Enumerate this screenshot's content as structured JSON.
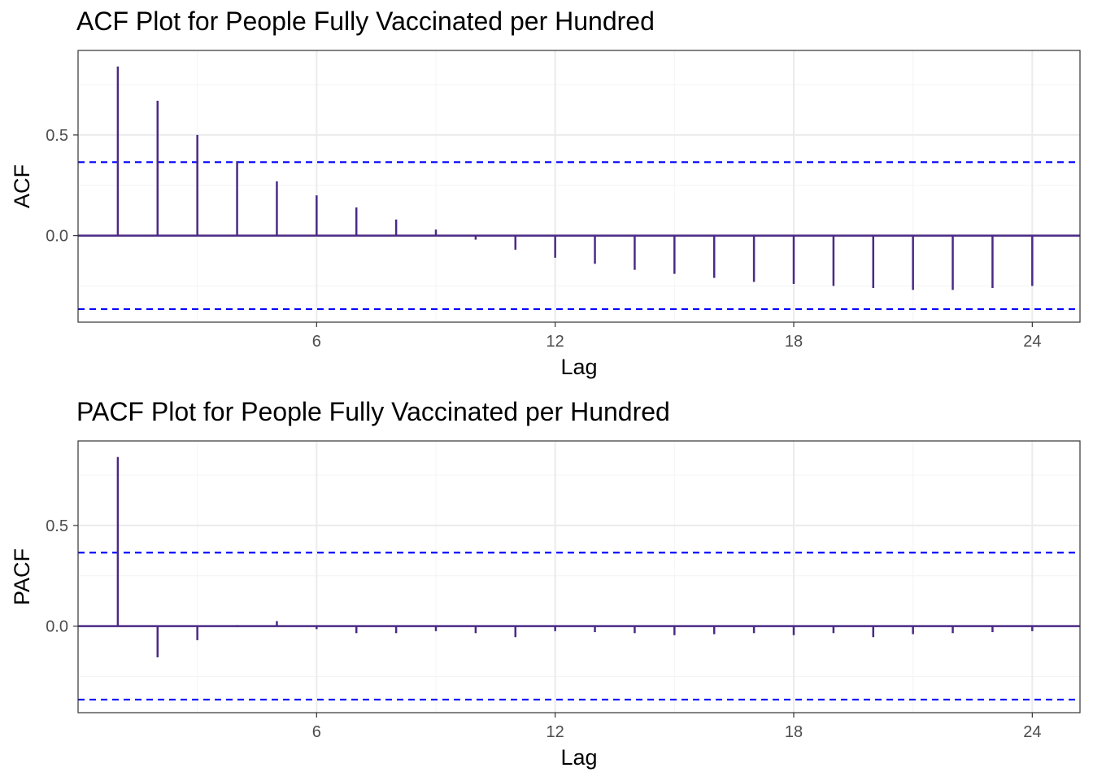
{
  "chart_data": [
    {
      "type": "bar",
      "title": "ACF Plot for People Fully Vaccinated per Hundred",
      "xlabel": "Lag",
      "ylabel": "ACF",
      "x": [
        1,
        2,
        3,
        4,
        5,
        6,
        7,
        8,
        9,
        10,
        11,
        12,
        13,
        14,
        15,
        16,
        17,
        18,
        19,
        20,
        21,
        22,
        23,
        24
      ],
      "values": [
        0.84,
        0.67,
        0.5,
        0.37,
        0.27,
        0.2,
        0.14,
        0.08,
        0.03,
        -0.02,
        -0.07,
        -0.11,
        -0.14,
        -0.17,
        -0.19,
        -0.21,
        -0.23,
        -0.24,
        -0.25,
        -0.26,
        -0.27,
        -0.27,
        -0.26,
        -0.25
      ],
      "confidence_bound": 0.365,
      "xlim": [
        0,
        25.2
      ],
      "ylim": [
        -0.43,
        0.92
      ],
      "xticks": [
        6,
        12,
        18,
        24
      ],
      "yticks": [
        0.0,
        0.5
      ],
      "ytick_labels": [
        "0.0",
        "0.5"
      ],
      "grid": true,
      "colors": {
        "stem": "#4b2a86",
        "zero_line": "#4b2a86",
        "bound": "#0000ff",
        "grid": "#ebebeb"
      }
    },
    {
      "type": "bar",
      "title": "PACF Plot for People Fully Vaccinated per Hundred",
      "xlabel": "Lag",
      "ylabel": "PACF",
      "x": [
        1,
        2,
        3,
        4,
        5,
        6,
        7,
        8,
        9,
        10,
        11,
        12,
        13,
        14,
        15,
        16,
        17,
        18,
        19,
        20,
        21,
        22,
        23,
        24
      ],
      "values": [
        0.84,
        -0.155,
        -0.07,
        0.005,
        0.025,
        -0.015,
        -0.035,
        -0.035,
        -0.025,
        -0.035,
        -0.055,
        -0.025,
        -0.03,
        -0.035,
        -0.045,
        -0.04,
        -0.035,
        -0.045,
        -0.035,
        -0.055,
        -0.04,
        -0.035,
        -0.03,
        -0.025
      ],
      "confidence_bound": 0.365,
      "xlim": [
        0,
        25.2
      ],
      "ylim": [
        -0.43,
        0.92
      ],
      "xticks": [
        6,
        12,
        18,
        24
      ],
      "yticks": [
        0.0,
        0.5
      ],
      "ytick_labels": [
        "0.0",
        "0.5"
      ],
      "grid": true,
      "colors": {
        "stem": "#4b2a86",
        "zero_line": "#4b2a86",
        "bound": "#0000ff",
        "grid": "#ebebeb"
      }
    }
  ]
}
